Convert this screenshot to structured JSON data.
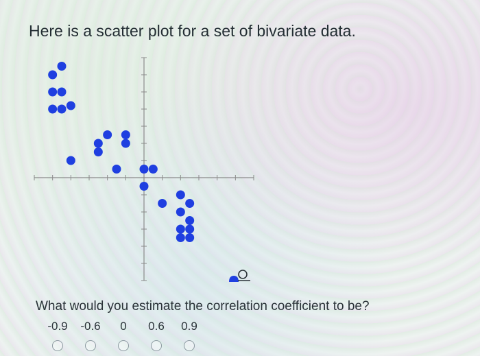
{
  "heading": "Here is a scatter plot for a set of bivariate data.",
  "question": "What would you estimate the correlation coefficient to be?",
  "options": [
    {
      "label": "-0.9"
    },
    {
      "label": "-0.6"
    },
    {
      "label": "0"
    },
    {
      "label": "0.6"
    },
    {
      "label": "0.9"
    }
  ],
  "colors": {
    "point": "#1f3fe0",
    "axis": "#8a8a8a",
    "text": "#232d33"
  },
  "chart_data": {
    "type": "scatter",
    "title": "",
    "xlabel": "",
    "ylabel": "",
    "xlim": [
      -6,
      6
    ],
    "ylim": [
      -6,
      7
    ],
    "grid": false,
    "x": [
      -5,
      -4.5,
      -5,
      -4.5,
      -5,
      -4.5,
      -4,
      -2.5,
      -2,
      -1,
      -1,
      -2.5,
      -4,
      -1.5,
      0,
      0.5,
      0,
      1,
      2,
      2.5,
      2,
      2.5,
      2,
      2.5,
      2.5,
      2
    ],
    "y": [
      6,
      6.5,
      5,
      5,
      4,
      4,
      4.2,
      2,
      2.5,
      2,
      2.5,
      1.5,
      1,
      0.5,
      0.5,
      0.5,
      -0.5,
      -1.5,
      -1,
      -1.5,
      -2,
      -2.5,
      -3,
      -3,
      -3.5,
      -3.5
    ]
  }
}
